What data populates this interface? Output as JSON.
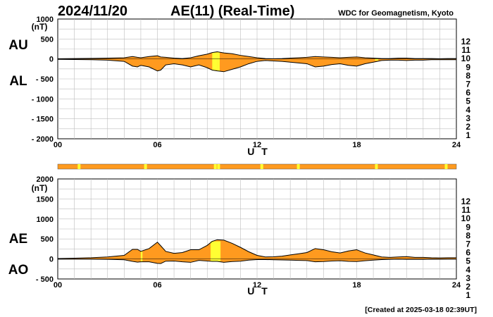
{
  "header": {
    "date": "2024/11/20",
    "title": "AE(11) (Real-Time)",
    "institution": "WDC for Geomagnetism, Kyoto"
  },
  "footer": {
    "created": "[Created at 2025-03-18 02:39UT]"
  },
  "colors": {
    "fill": "#ff9a1f",
    "highlight": "#ffff33",
    "grid": "#bdbdbd",
    "trace": "#000000",
    "station_bar": "#ff9a1f"
  },
  "station_legend": [
    {
      "num": "12",
      "color": "#ff2d8a"
    },
    {
      "num": "11",
      "color": "#ff2222"
    },
    {
      "num": "10",
      "color": "#ff9900"
    },
    {
      "num": "9",
      "color": "#ffff00"
    },
    {
      "num": "8",
      "color": "#99ff33"
    },
    {
      "num": "7",
      "color": "#33ddff"
    },
    {
      "num": "6",
      "color": "#2277ff"
    },
    {
      "num": "5",
      "color": "#1a1acc"
    },
    {
      "num": "4",
      "color": "#cc33cc"
    },
    {
      "num": "3",
      "color": "#222222"
    },
    {
      "num": "2",
      "color": "#777777"
    },
    {
      "num": "1",
      "color": "#cccccc"
    }
  ],
  "chart_data": [
    {
      "type": "area",
      "id": "au_al",
      "series_labels": {
        "upper": "AU",
        "lower": "AL"
      },
      "ylabel": "(nT)",
      "xlabel": "U T",
      "xlim": [
        0,
        24
      ],
      "ylim": [
        -2000,
        1000
      ],
      "yticks": [
        "1000",
        "500",
        "0",
        "- 500",
        "- 1000",
        "- 1500",
        "- 2000"
      ],
      "ytick_values": [
        1000,
        500,
        0,
        -500,
        -1000,
        -1500,
        -2000
      ],
      "xticks": [
        "00",
        "06",
        "12",
        "18",
        "24"
      ],
      "xtick_values": [
        0,
        6,
        12,
        18,
        24
      ],
      "grid": true,
      "x": [
        0,
        1,
        2,
        3,
        4,
        4.5,
        4.8,
        5,
        5.5,
        6,
        6.2,
        6.5,
        7,
        7.5,
        8,
        8.5,
        9,
        9.3,
        9.6,
        10,
        10.5,
        11,
        11.5,
        12,
        12.5,
        13,
        13.5,
        14,
        14.5,
        15,
        15.5,
        16,
        16.5,
        17,
        17.5,
        18,
        18.5,
        19,
        19.5,
        20,
        20.5,
        21,
        21.5,
        22,
        22.5,
        23,
        23.5,
        24
      ],
      "upper": [
        5,
        10,
        15,
        20,
        30,
        60,
        40,
        30,
        60,
        80,
        50,
        40,
        20,
        10,
        30,
        80,
        120,
        160,
        180,
        150,
        130,
        90,
        60,
        30,
        10,
        5,
        10,
        20,
        30,
        40,
        60,
        50,
        40,
        30,
        40,
        50,
        30,
        20,
        10,
        10,
        20,
        20,
        10,
        10,
        10,
        5,
        10,
        10
      ],
      "lower": [
        -10,
        -15,
        -20,
        -30,
        -60,
        -180,
        -200,
        -160,
        -200,
        -300,
        -280,
        -150,
        -120,
        -150,
        -200,
        -150,
        -220,
        -280,
        -300,
        -320,
        -260,
        -200,
        -120,
        -60,
        -40,
        -50,
        -60,
        -80,
        -100,
        -120,
        -200,
        -180,
        -140,
        -120,
        -160,
        -180,
        -120,
        -80,
        -40,
        -30,
        -30,
        -40,
        -30,
        -30,
        -20,
        -20,
        -20,
        -20
      ],
      "highlight_ranges": [
        [
          9.3,
          9.6
        ],
        [
          9.6,
          9.75
        ],
        [
          19.1,
          19.3
        ]
      ]
    },
    {
      "type": "area",
      "id": "ae_ao",
      "series_labels": {
        "upper": "AE",
        "lower": "AO"
      },
      "ylabel": "(nT)",
      "xlabel": "U T",
      "xlim": [
        0,
        24
      ],
      "ylim": [
        -500,
        2000
      ],
      "yticks": [
        "2000",
        "1500",
        "1000",
        "500",
        "0",
        "- 500"
      ],
      "ytick_values": [
        2000,
        1500,
        1000,
        500,
        0,
        -500
      ],
      "xticks": [
        "00",
        "06",
        "12",
        "18",
        "24"
      ],
      "xtick_values": [
        0,
        6,
        12,
        18,
        24
      ],
      "grid": true,
      "x": [
        0,
        1,
        2,
        3,
        4,
        4.5,
        4.8,
        5,
        5.5,
        6,
        6.2,
        6.5,
        7,
        7.5,
        8,
        8.5,
        9,
        9.3,
        9.6,
        10,
        10.5,
        11,
        11.5,
        12,
        12.5,
        13,
        13.5,
        14,
        14.5,
        15,
        15.5,
        16,
        16.5,
        17,
        17.5,
        18,
        18.5,
        19,
        19.5,
        20,
        20.5,
        21,
        21.5,
        22,
        22.5,
        23,
        23.5,
        24
      ],
      "upper": [
        10,
        20,
        30,
        50,
        90,
        240,
        240,
        190,
        260,
        420,
        330,
        190,
        140,
        160,
        230,
        230,
        340,
        440,
        480,
        470,
        390,
        290,
        180,
        90,
        50,
        55,
        70,
        100,
        130,
        160,
        260,
        230,
        180,
        150,
        200,
        230,
        150,
        100,
        50,
        40,
        50,
        60,
        40,
        40,
        30,
        25,
        30,
        30
      ],
      "lower": [
        -5,
        -5,
        -5,
        -10,
        -20,
        -60,
        -80,
        -70,
        -70,
        -110,
        -115,
        -55,
        -50,
        -70,
        -85,
        -35,
        -50,
        -60,
        -60,
        -85,
        -65,
        -55,
        -30,
        -15,
        -15,
        -20,
        -25,
        -30,
        -35,
        -40,
        -70,
        -65,
        -50,
        -45,
        -60,
        -65,
        -45,
        -30,
        -15,
        -10,
        -5,
        -10,
        -10,
        -10,
        -5,
        -8,
        -5,
        -5
      ],
      "highlight_ranges": [
        [
          9.2,
          9.8
        ],
        [
          5.0,
          5.1
        ]
      ]
    }
  ],
  "station_bar": {
    "highlight_hours": [
      1.2,
      5.2,
      9.4,
      9.6,
      12.2,
      14.4,
      19.1,
      23.3
    ]
  }
}
